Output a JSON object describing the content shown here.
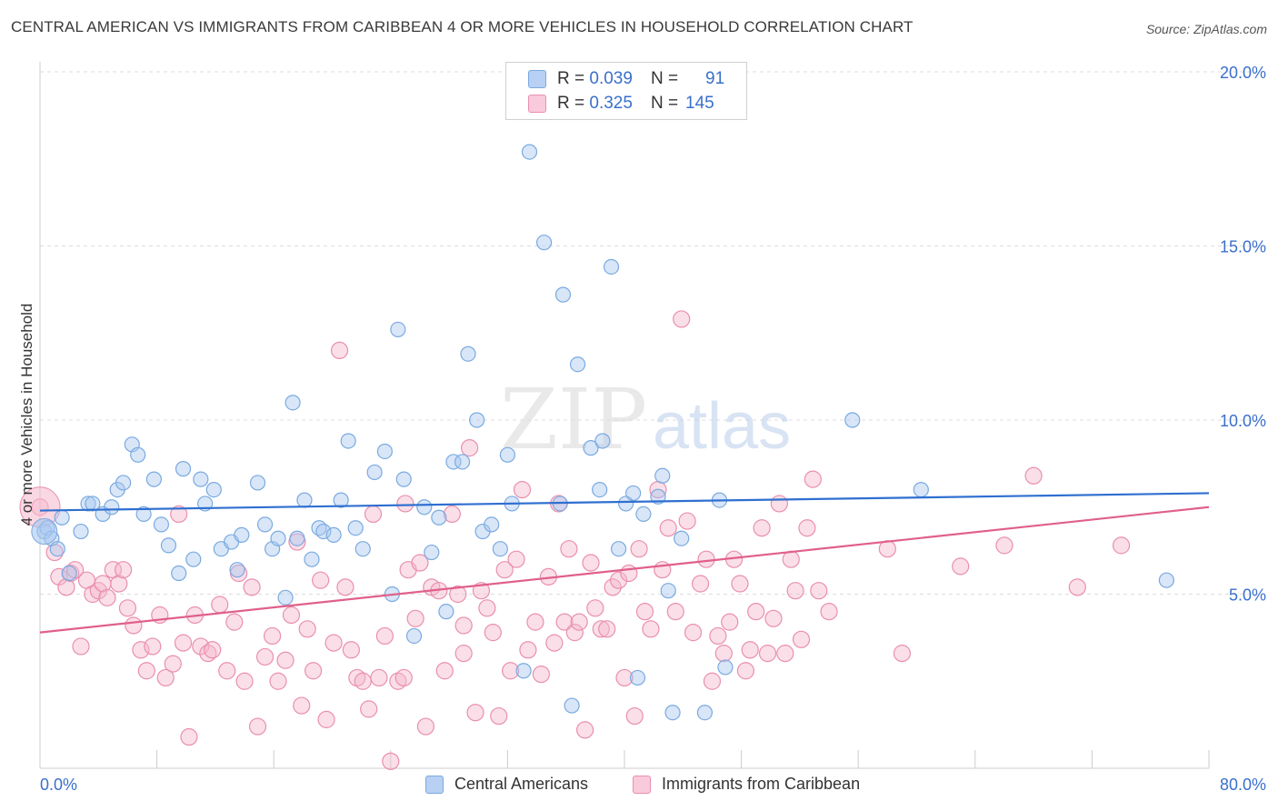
{
  "title": "CENTRAL AMERICAN VS IMMIGRANTS FROM CARIBBEAN 4 OR MORE VEHICLES IN HOUSEHOLD CORRELATION CHART",
  "source": "Source: ZipAtlas.com",
  "watermark": {
    "zip": "ZIP",
    "atlas": "atlas"
  },
  "colors": {
    "blue_fill": "#a8c8f0",
    "blue_stroke": "#7aaae0",
    "blue_line": "#2f6fd0",
    "pink_fill": "#f5b8cc",
    "pink_stroke": "#ea8fae",
    "pink_line": "#e0608a",
    "axis_text": "#3a6fcc",
    "grid": "#dddddd"
  },
  "legend_top": [
    {
      "r_label": "R =",
      "r_value": "0.039",
      "n_label": "N =",
      "n_value": "91"
    },
    {
      "r_label": "R =",
      "r_value": "0.325",
      "n_label": "N =",
      "n_value": "145"
    }
  ],
  "chart_data": {
    "type": "scatter",
    "xlabel": "",
    "ylabel": "4 or more Vehicles in Household",
    "xlim": [
      0,
      80
    ],
    "ylim": [
      0,
      20
    ],
    "x_tick_labels": [
      "0.0%",
      "80.0%"
    ],
    "y_tick_labels": [
      "5.0%",
      "10.0%",
      "15.0%",
      "20.0%"
    ],
    "y_ticks": [
      5,
      10,
      15,
      20
    ],
    "grid": true,
    "legend_position": "bottom",
    "series": [
      {
        "name": "Central Americans",
        "trend": [
          [
            0,
            7.4
          ],
          [
            80,
            7.9
          ]
        ],
        "points": [
          [
            0.3,
            6.8
          ],
          [
            0.5,
            6.9
          ],
          [
            0.8,
            6.6
          ],
          [
            1.2,
            6.3
          ],
          [
            1.5,
            7.2
          ],
          [
            2.0,
            5.6
          ],
          [
            2.8,
            6.8
          ],
          [
            3.3,
            7.6
          ],
          [
            3.6,
            7.6
          ],
          [
            4.3,
            7.3
          ],
          [
            4.9,
            7.5
          ],
          [
            5.3,
            8.0
          ],
          [
            5.7,
            8.2
          ],
          [
            6.3,
            9.3
          ],
          [
            6.7,
            9.0
          ],
          [
            7.1,
            7.3
          ],
          [
            7.8,
            8.3
          ],
          [
            8.3,
            7.0
          ],
          [
            8.8,
            6.4
          ],
          [
            9.5,
            5.6
          ],
          [
            9.8,
            8.6
          ],
          [
            10.5,
            6.0
          ],
          [
            11.0,
            8.3
          ],
          [
            11.3,
            7.6
          ],
          [
            11.9,
            8.0
          ],
          [
            12.4,
            6.3
          ],
          [
            13.1,
            6.5
          ],
          [
            13.5,
            5.7
          ],
          [
            13.8,
            6.7
          ],
          [
            14.9,
            8.2
          ],
          [
            15.4,
            7.0
          ],
          [
            15.9,
            6.3
          ],
          [
            16.3,
            6.6
          ],
          [
            16.8,
            4.9
          ],
          [
            17.3,
            10.5
          ],
          [
            17.6,
            6.6
          ],
          [
            18.1,
            7.7
          ],
          [
            18.6,
            6.0
          ],
          [
            19.1,
            6.9
          ],
          [
            19.4,
            6.8
          ],
          [
            20.1,
            6.7
          ],
          [
            20.6,
            7.7
          ],
          [
            21.1,
            9.4
          ],
          [
            21.6,
            6.9
          ],
          [
            22.1,
            6.3
          ],
          [
            22.9,
            8.5
          ],
          [
            23.6,
            9.1
          ],
          [
            24.1,
            5.0
          ],
          [
            24.5,
            12.6
          ],
          [
            24.9,
            8.3
          ],
          [
            25.6,
            3.8
          ],
          [
            26.3,
            7.5
          ],
          [
            26.8,
            6.2
          ],
          [
            27.3,
            7.2
          ],
          [
            27.8,
            4.5
          ],
          [
            28.3,
            8.8
          ],
          [
            28.9,
            8.8
          ],
          [
            29.3,
            11.9
          ],
          [
            29.9,
            10.0
          ],
          [
            30.3,
            6.8
          ],
          [
            30.9,
            7.0
          ],
          [
            31.5,
            6.3
          ],
          [
            32.0,
            9.0
          ],
          [
            32.3,
            7.6
          ],
          [
            33.1,
            2.8
          ],
          [
            33.5,
            17.7
          ],
          [
            34.5,
            15.1
          ],
          [
            35.6,
            7.6
          ],
          [
            35.8,
            13.6
          ],
          [
            36.4,
            1.8
          ],
          [
            36.8,
            11.6
          ],
          [
            37.7,
            9.2
          ],
          [
            38.3,
            8.0
          ],
          [
            38.5,
            9.4
          ],
          [
            39.1,
            14.4
          ],
          [
            39.6,
            6.3
          ],
          [
            40.1,
            7.6
          ],
          [
            40.6,
            7.9
          ],
          [
            40.9,
            2.6
          ],
          [
            41.3,
            7.3
          ],
          [
            42.3,
            7.8
          ],
          [
            42.6,
            8.4
          ],
          [
            43.0,
            5.1
          ],
          [
            43.3,
            1.6
          ],
          [
            43.9,
            6.6
          ],
          [
            45.5,
            1.6
          ],
          [
            46.5,
            7.7
          ],
          [
            46.9,
            2.9
          ],
          [
            55.6,
            10.0
          ],
          [
            60.3,
            8.0
          ],
          [
            77.1,
            5.4
          ]
        ]
      },
      {
        "name": "Immigrants from Caribbean",
        "trend": [
          [
            0,
            3.9
          ],
          [
            80,
            7.5
          ]
        ],
        "points": [
          [
            0.0,
            7.5
          ],
          [
            1.0,
            6.2
          ],
          [
            1.3,
            5.5
          ],
          [
            1.8,
            5.2
          ],
          [
            2.1,
            5.6
          ],
          [
            2.4,
            5.7
          ],
          [
            2.8,
            3.5
          ],
          [
            3.2,
            5.4
          ],
          [
            3.6,
            5.0
          ],
          [
            4.0,
            5.1
          ],
          [
            4.3,
            5.3
          ],
          [
            4.6,
            4.9
          ],
          [
            5.0,
            5.7
          ],
          [
            5.4,
            5.3
          ],
          [
            5.7,
            5.7
          ],
          [
            6.0,
            4.6
          ],
          [
            6.4,
            4.1
          ],
          [
            6.9,
            3.4
          ],
          [
            7.3,
            2.8
          ],
          [
            7.7,
            3.5
          ],
          [
            8.2,
            4.4
          ],
          [
            8.6,
            2.6
          ],
          [
            9.1,
            3.0
          ],
          [
            9.5,
            7.3
          ],
          [
            9.8,
            3.6
          ],
          [
            10.2,
            0.9
          ],
          [
            10.6,
            4.4
          ],
          [
            11.0,
            3.5
          ],
          [
            11.5,
            3.3
          ],
          [
            11.8,
            3.4
          ],
          [
            12.3,
            4.7
          ],
          [
            12.8,
            2.8
          ],
          [
            13.3,
            4.2
          ],
          [
            13.6,
            5.6
          ],
          [
            14.0,
            2.5
          ],
          [
            14.5,
            5.2
          ],
          [
            14.9,
            1.2
          ],
          [
            15.4,
            3.2
          ],
          [
            15.9,
            3.8
          ],
          [
            16.3,
            2.5
          ],
          [
            16.8,
            3.1
          ],
          [
            17.2,
            4.4
          ],
          [
            17.6,
            6.5
          ],
          [
            17.9,
            1.8
          ],
          [
            18.3,
            4.0
          ],
          [
            18.7,
            2.8
          ],
          [
            19.2,
            5.4
          ],
          [
            19.6,
            1.4
          ],
          [
            20.1,
            3.6
          ],
          [
            20.5,
            12.0
          ],
          [
            20.9,
            5.2
          ],
          [
            21.3,
            3.4
          ],
          [
            21.7,
            2.6
          ],
          [
            22.1,
            2.5
          ],
          [
            22.5,
            1.7
          ],
          [
            22.8,
            7.3
          ],
          [
            23.2,
            2.6
          ],
          [
            23.6,
            3.8
          ],
          [
            24.0,
            0.2
          ],
          [
            24.5,
            2.5
          ],
          [
            24.9,
            2.6
          ],
          [
            25.2,
            5.7
          ],
          [
            25.7,
            4.3
          ],
          [
            26.0,
            5.9
          ],
          [
            26.4,
            1.2
          ],
          [
            26.8,
            5.2
          ],
          [
            27.3,
            5.1
          ],
          [
            27.7,
            2.8
          ],
          [
            28.2,
            7.3
          ],
          [
            28.6,
            5.0
          ],
          [
            29.0,
            3.3
          ],
          [
            29.4,
            9.2
          ],
          [
            29.8,
            1.6
          ],
          [
            30.2,
            5.1
          ],
          [
            30.6,
            4.6
          ],
          [
            31.0,
            3.9
          ],
          [
            31.4,
            1.5
          ],
          [
            31.8,
            5.7
          ],
          [
            32.2,
            2.8
          ],
          [
            32.6,
            6.0
          ],
          [
            33.0,
            8.0
          ],
          [
            33.4,
            3.4
          ],
          [
            33.9,
            4.2
          ],
          [
            34.3,
            2.7
          ],
          [
            34.8,
            5.5
          ],
          [
            35.2,
            3.6
          ],
          [
            35.5,
            7.6
          ],
          [
            35.9,
            4.2
          ],
          [
            36.2,
            6.3
          ],
          [
            36.6,
            3.9
          ],
          [
            36.9,
            4.2
          ],
          [
            37.3,
            1.1
          ],
          [
            37.7,
            5.9
          ],
          [
            38.0,
            4.6
          ],
          [
            38.4,
            4.0
          ],
          [
            38.8,
            4.0
          ],
          [
            39.2,
            5.2
          ],
          [
            39.6,
            5.4
          ],
          [
            40.0,
            2.6
          ],
          [
            40.3,
            5.6
          ],
          [
            40.7,
            1.5
          ],
          [
            41.0,
            6.3
          ],
          [
            41.4,
            4.5
          ],
          [
            41.8,
            4.0
          ],
          [
            42.3,
            8.0
          ],
          [
            42.6,
            5.7
          ],
          [
            43.0,
            6.9
          ],
          [
            43.5,
            4.5
          ],
          [
            43.9,
            12.9
          ],
          [
            44.3,
            7.1
          ],
          [
            44.7,
            3.9
          ],
          [
            45.2,
            5.3
          ],
          [
            45.6,
            6.0
          ],
          [
            46.0,
            2.5
          ],
          [
            46.4,
            3.8
          ],
          [
            46.8,
            3.3
          ],
          [
            47.2,
            4.2
          ],
          [
            47.5,
            6.0
          ],
          [
            47.9,
            5.3
          ],
          [
            48.3,
            2.8
          ],
          [
            48.6,
            3.4
          ],
          [
            49.0,
            4.5
          ],
          [
            49.4,
            6.9
          ],
          [
            49.8,
            3.3
          ],
          [
            50.2,
            4.3
          ],
          [
            50.6,
            7.6
          ],
          [
            51.0,
            3.3
          ],
          [
            51.4,
            6.0
          ],
          [
            51.7,
            5.1
          ],
          [
            52.1,
            3.7
          ],
          [
            52.5,
            6.9
          ],
          [
            52.9,
            8.3
          ],
          [
            53.3,
            5.1
          ],
          [
            54.0,
            4.5
          ],
          [
            58.0,
            6.3
          ],
          [
            59.0,
            3.3
          ],
          [
            63.0,
            5.8
          ],
          [
            66.0,
            6.4
          ],
          [
            68.0,
            8.4
          ],
          [
            71.0,
            5.2
          ],
          [
            74.0,
            6.4
          ],
          [
            25.0,
            7.6
          ],
          [
            29.0,
            4.1
          ]
        ]
      }
    ]
  }
}
